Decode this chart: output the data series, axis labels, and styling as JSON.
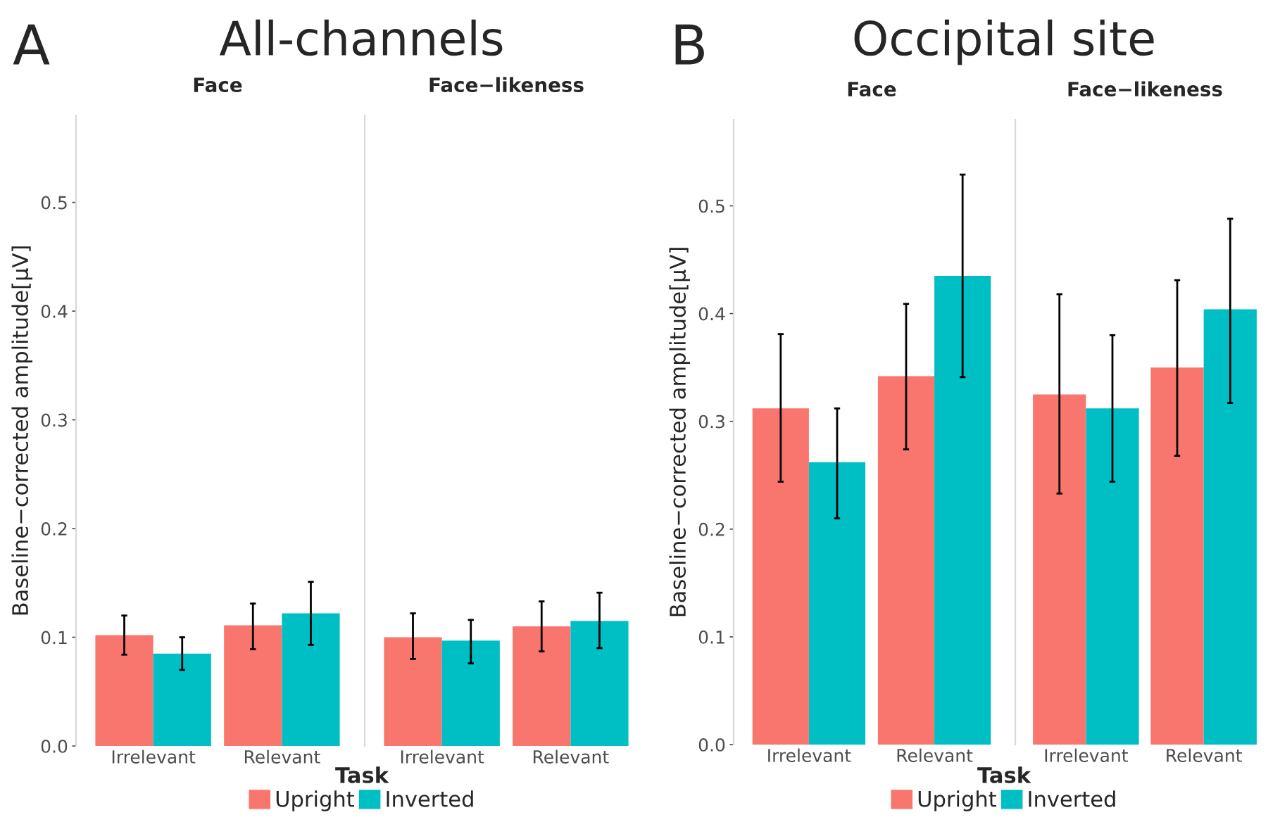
{
  "chart_data": [
    {
      "type": "bar",
      "title": "Face",
      "annotations": [
        "A",
        "All-channels"
      ],
      "xlabel": "Task",
      "ylabel": "Baseline−corrected amplitude[μV]",
      "categories": [
        "Irrelevant",
        "Relevant"
      ],
      "ylim": [
        0,
        0.58
      ],
      "yticks": [
        {
          "value": 0,
          "label": "0.0"
        },
        0.1,
        0.2,
        0.3,
        0.4,
        0.5
      ],
      "grid": false,
      "legend": "bottom",
      "series": [
        {
          "name": "Upright",
          "color": "#f8766d",
          "values": [
            0.102,
            0.111
          ],
          "errors": [
            [
              0.084,
              0.12
            ],
            [
              0.089,
              0.131
            ]
          ]
        },
        {
          "name": "Inverted",
          "color": "#00bfc4",
          "values": [
            0.085,
            0.122
          ],
          "errors": [
            [
              0.07,
              0.1
            ],
            [
              0.093,
              0.151
            ]
          ]
        }
      ]
    },
    {
      "type": "bar",
      "title": "Face−likeness",
      "categories": [
        "Irrelevant",
        "Relevant"
      ],
      "ylim": [
        0,
        0.58
      ],
      "grid": false,
      "tick_labels": "x",
      "series": [
        {
          "color": "#f8766d",
          "values": [
            0.1,
            0.11
          ],
          "errors": [
            [
              0.08,
              0.122
            ],
            [
              0.087,
              0.133
            ]
          ]
        },
        {
          "color": "#00bfc4",
          "values": [
            0.097,
            0.115
          ],
          "errors": [
            [
              0.076,
              0.116
            ],
            [
              0.09,
              0.141
            ]
          ]
        }
      ]
    },
    {
      "type": "bar",
      "title": "Face",
      "annotations": [
        "B",
        "Occipital site"
      ],
      "xlabel": "Task",
      "ylabel": "Baseline−corrected amplitude[μV]",
      "categories": [
        "Irrelevant",
        "Relevant"
      ],
      "ylim": [
        0,
        0.58
      ],
      "yticks": [
        {
          "value": 0,
          "label": "0.0"
        },
        0.1,
        0.2,
        0.3,
        0.4,
        0.5
      ],
      "grid": false,
      "legend": "bottom",
      "series": [
        {
          "name": "Upright",
          "color": "#f8766d",
          "values": [
            0.312,
            0.342
          ],
          "errors": [
            [
              0.244,
              0.381
            ],
            [
              0.274,
              0.409
            ]
          ]
        },
        {
          "name": "Inverted",
          "color": "#00bfc4",
          "values": [
            0.262,
            0.435
          ],
          "errors": [
            [
              0.21,
              0.312
            ],
            [
              0.341,
              0.529
            ]
          ]
        }
      ]
    },
    {
      "type": "bar",
      "title": "Face−likeness",
      "categories": [
        "Irrelevant",
        "Relevant"
      ],
      "ylim": [
        0,
        0.58
      ],
      "grid": false,
      "tick_labels": "x",
      "series": [
        {
          "color": "#f8766d",
          "values": [
            0.325,
            0.35
          ],
          "errors": [
            [
              0.233,
              0.418
            ],
            [
              0.268,
              0.431
            ]
          ]
        },
        {
          "color": "#00bfc4",
          "values": [
            0.312,
            0.404
          ],
          "errors": [
            [
              0.244,
              0.38
            ],
            [
              0.317,
              0.488
            ]
          ]
        }
      ]
    }
  ]
}
